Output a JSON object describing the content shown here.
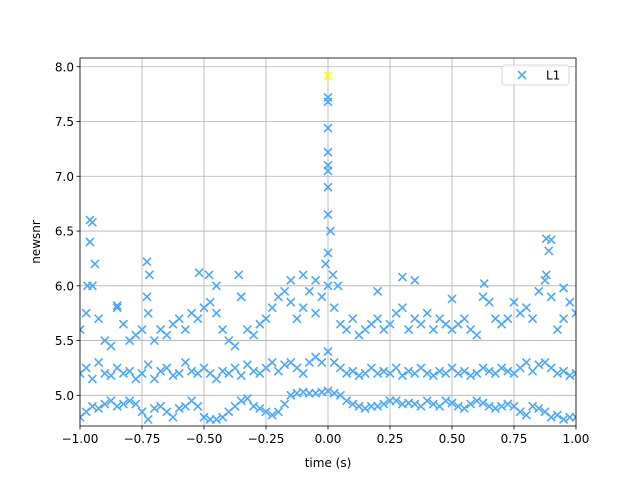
{
  "chart_data": {
    "type": "scatter",
    "xlabel": "time (s)",
    "ylabel": "newsnr",
    "xlim": [
      -1,
      1
    ],
    "ylim": [
      4.72,
      8.08
    ],
    "xticks": [
      {
        "value": -1,
        "label": "−1.00"
      },
      {
        "value": -0.75,
        "label": "−0.75"
      },
      {
        "value": -0.5,
        "label": "−0.50"
      },
      {
        "value": -0.25,
        "label": "−0.25"
      },
      {
        "value": 0,
        "label": "0.00"
      },
      {
        "value": 0.25,
        "label": "0.25"
      },
      {
        "value": 0.5,
        "label": "0.50"
      },
      {
        "value": 0.75,
        "label": "0.75"
      },
      {
        "value": 1,
        "label": "1.00"
      }
    ],
    "yticks": [
      {
        "value": 5,
        "label": "5.0"
      },
      {
        "value": 5.5,
        "label": "5.5"
      },
      {
        "value": 6,
        "label": "6.0"
      },
      {
        "value": 6.5,
        "label": "6.5"
      },
      {
        "value": 7,
        "label": "7.0"
      },
      {
        "value": 7.5,
        "label": "7.5"
      },
      {
        "value": 8,
        "label": "8.0"
      }
    ],
    "grid": true,
    "legend": "upper right",
    "series": [
      {
        "name": "L1",
        "color": "#4ba7ff",
        "x": [
          -1,
          -0.975,
          -0.95,
          -0.925,
          -0.9,
          -0.875,
          -0.85,
          -0.825,
          -0.8,
          -0.775,
          -0.75,
          -0.725,
          -0.7,
          -0.675,
          -0.65,
          -0.625,
          -0.6,
          -0.575,
          -0.55,
          -0.525,
          -0.5,
          -0.475,
          -0.45,
          -0.425,
          -0.4,
          -0.375,
          -0.35,
          -0.325,
          -0.3,
          -0.275,
          -0.25,
          -0.225,
          -0.2,
          -0.175,
          -0.15,
          -0.125,
          -0.1,
          -0.075,
          -0.05,
          -0.025,
          0,
          0.025,
          0.05,
          0.075,
          0.1,
          0.125,
          0.15,
          0.175,
          0.2,
          0.225,
          0.25,
          0.275,
          0.3,
          0.325,
          0.35,
          0.375,
          0.4,
          0.425,
          0.45,
          0.475,
          0.5,
          0.525,
          0.55,
          0.575,
          0.6,
          0.625,
          0.65,
          0.675,
          0.7,
          0.725,
          0.75,
          0.775,
          0.8,
          0.825,
          0.85,
          0.875,
          0.9,
          0.925,
          0.95,
          0.975,
          1,
          -1,
          -0.975,
          -0.95,
          -0.925,
          -0.9,
          -0.875,
          -0.85,
          -0.825,
          -0.8,
          -0.775,
          -0.75,
          -0.725,
          -0.7,
          -0.675,
          -0.65,
          -0.625,
          -0.6,
          -0.575,
          -0.55,
          -0.525,
          -0.5,
          -0.475,
          -0.45,
          -0.425,
          -0.4,
          -0.375,
          -0.35,
          -0.325,
          -0.3,
          -0.275,
          -0.25,
          -0.225,
          -0.2,
          -0.175,
          -0.15,
          -0.125,
          -0.1,
          -0.075,
          -0.05,
          -0.025,
          0,
          0.025,
          0.05,
          0.075,
          0.1,
          0.125,
          0.15,
          0.175,
          0.2,
          0.225,
          0.25,
          0.275,
          0.3,
          0.325,
          0.35,
          0.375,
          0.4,
          0.425,
          0.45,
          0.475,
          0.5,
          0.525,
          0.55,
          0.575,
          0.6,
          0.625,
          0.65,
          0.675,
          0.7,
          0.725,
          0.75,
          0.775,
          0.8,
          0.825,
          0.85,
          0.875,
          0.9,
          0.925,
          0.95,
          0.975,
          1,
          -1,
          -0.975,
          -0.95,
          -0.925,
          -0.9,
          -0.875,
          -0.85,
          -0.825,
          -0.8,
          -0.775,
          -0.75,
          -0.725,
          -0.7,
          -0.675,
          -0.65,
          -0.625,
          -0.6,
          -0.575,
          -0.55,
          -0.525,
          -0.5,
          -0.475,
          -0.45,
          -0.425,
          -0.4,
          -0.375,
          -0.35,
          -0.325,
          -0.3,
          -0.275,
          -0.25,
          -0.225,
          -0.2,
          -0.175,
          -0.15,
          -0.125,
          -0.1,
          -0.075,
          -0.05,
          -0.025,
          0,
          0.025,
          0.05,
          0.075,
          0.1,
          0.125,
          0.15,
          0.175,
          0.2,
          0.225,
          0.25,
          0.275,
          0.3,
          0.325,
          0.35,
          0.375,
          0.4,
          0.425,
          0.45,
          0.475,
          0.5,
          0.525,
          0.55,
          0.575,
          0.6,
          0.625,
          0.65,
          0.675,
          0.7,
          0.725,
          0.75,
          0.775,
          0.8,
          0.825,
          0.85,
          0.875,
          0.9,
          0.925,
          0.95,
          0.975,
          1,
          -0.96,
          -0.95,
          -0.96,
          -0.94,
          -0.97,
          -0.73,
          -0.72,
          -0.73,
          -0.52,
          -0.48,
          -0.45,
          -0.36,
          -0.35,
          -0.15,
          -0.1,
          -0.05,
          0,
          0,
          0,
          0,
          0,
          0,
          0,
          0,
          0.01,
          0,
          -0.01,
          0.02,
          0.04,
          0.3,
          0.35,
          0.63,
          0.88,
          0.9,
          0.89,
          0.88,
          0.95,
          0.2,
          0.5,
          -0.85
        ],
        "values": [
          4.8,
          4.85,
          4.9,
          4.88,
          4.92,
          4.95,
          4.9,
          4.92,
          4.95,
          4.92,
          4.85,
          4.78,
          4.88,
          4.9,
          4.85,
          4.8,
          4.88,
          4.9,
          4.95,
          4.9,
          4.8,
          4.78,
          4.78,
          4.8,
          4.85,
          4.9,
          4.95,
          4.97,
          4.9,
          4.88,
          4.85,
          4.82,
          4.85,
          4.92,
          5.0,
          5.02,
          5.03,
          5.02,
          5.02,
          5.03,
          5.04,
          5.02,
          5.0,
          4.95,
          4.92,
          4.9,
          4.88,
          4.9,
          4.9,
          4.92,
          4.95,
          4.95,
          4.92,
          4.93,
          4.92,
          4.9,
          4.95,
          4.92,
          4.9,
          4.95,
          4.93,
          4.9,
          4.88,
          4.92,
          4.95,
          4.93,
          4.9,
          4.88,
          4.9,
          4.92,
          4.9,
          4.85,
          4.82,
          4.9,
          4.88,
          4.85,
          4.8,
          4.82,
          4.78,
          4.8,
          4.8,
          5.2,
          5.25,
          5.15,
          5.3,
          5.2,
          5.18,
          5.25,
          5.2,
          5.22,
          5.15,
          5.2,
          5.28,
          5.15,
          5.22,
          5.25,
          5.18,
          5.2,
          5.3,
          5.22,
          5.2,
          5.25,
          5.2,
          5.15,
          5.22,
          5.2,
          5.25,
          5.18,
          5.28,
          5.22,
          5.2,
          5.25,
          5.3,
          5.22,
          5.28,
          5.3,
          5.25,
          5.2,
          5.3,
          5.35,
          5.3,
          5.4,
          5.3,
          5.25,
          5.2,
          5.22,
          5.18,
          5.2,
          5.25,
          5.2,
          5.22,
          5.2,
          5.25,
          5.18,
          5.22,
          5.2,
          5.25,
          5.2,
          5.18,
          5.22,
          5.2,
          5.25,
          5.2,
          5.22,
          5.18,
          5.2,
          5.25,
          5.22,
          5.2,
          5.25,
          5.22,
          5.2,
          5.25,
          5.3,
          5.22,
          5.28,
          5.3,
          5.25,
          5.2,
          5.22,
          5.18,
          5.2,
          5.6,
          5.75,
          6.0,
          5.7,
          5.5,
          5.45,
          5.8,
          5.65,
          5.5,
          5.55,
          5.6,
          5.75,
          5.5,
          5.6,
          5.55,
          5.65,
          5.7,
          5.6,
          5.75,
          5.7,
          5.8,
          5.85,
          5.75,
          5.6,
          5.5,
          5.45,
          5.9,
          5.6,
          5.55,
          5.65,
          5.7,
          5.8,
          5.9,
          5.95,
          5.85,
          5.7,
          5.8,
          5.95,
          5.75,
          5.9,
          6.0,
          5.8,
          5.65,
          5.6,
          5.7,
          5.55,
          5.6,
          5.65,
          5.7,
          5.6,
          5.65,
          5.75,
          5.8,
          5.6,
          5.7,
          5.65,
          5.75,
          5.6,
          5.7,
          5.65,
          5.6,
          5.65,
          5.7,
          5.6,
          5.55,
          5.9,
          5.85,
          5.7,
          5.65,
          5.7,
          5.85,
          5.75,
          5.8,
          5.7,
          5.95,
          6.05,
          5.9,
          5.6,
          5.7,
          5.85,
          5.75,
          6.6,
          6.58,
          6.4,
          6.2,
          6.0,
          6.22,
          6.1,
          5.9,
          6.12,
          6.1,
          6.0,
          6.1,
          5.9,
          6.05,
          6.1,
          6.05,
          7.72,
          7.68,
          7.44,
          7.22,
          7.1,
          7.05,
          6.9,
          6.65,
          6.5,
          6.3,
          6.2,
          6.1,
          6.0,
          6.08,
          6.05,
          6.02,
          6.43,
          6.42,
          6.32,
          6.1,
          5.98,
          5.95,
          5.88,
          5.82
        ]
      }
    ],
    "loudest": {
      "x": 0,
      "y": 7.92,
      "color": "#ffff00"
    }
  }
}
